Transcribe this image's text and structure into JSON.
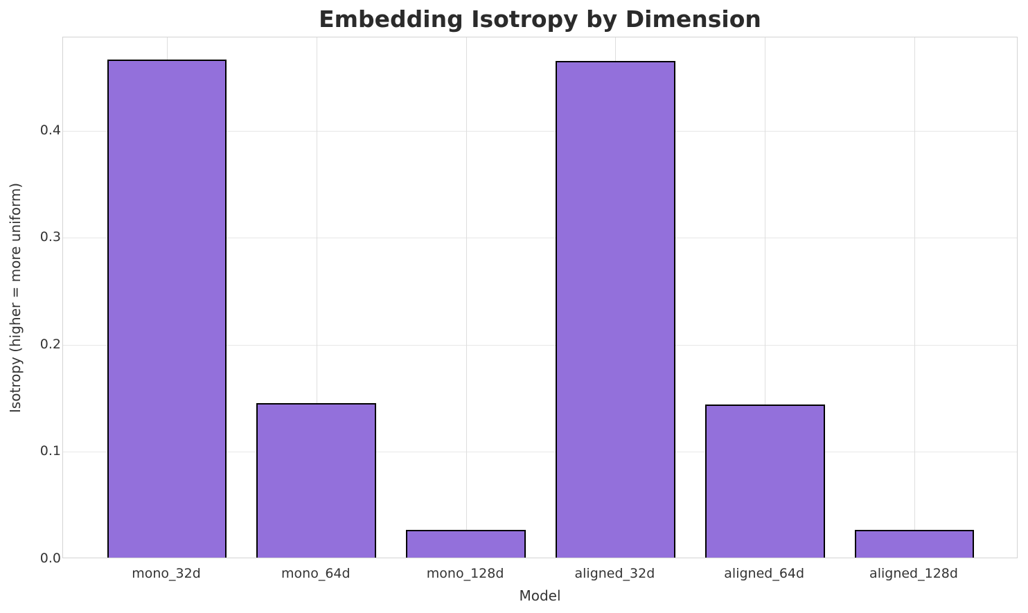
{
  "chart_data": {
    "type": "bar",
    "title": "Embedding Isotropy by Dimension",
    "xlabel": "Model",
    "ylabel": "Isotropy (higher = more uniform)",
    "categories": [
      "mono_32d",
      "mono_64d",
      "mono_128d",
      "aligned_32d",
      "aligned_64d",
      "aligned_128d"
    ],
    "values": [
      0.465,
      0.144,
      0.026,
      0.464,
      0.143,
      0.026
    ],
    "ylim": [
      0,
      0.487
    ],
    "yticks": [
      0.0,
      0.1,
      0.2,
      0.3,
      0.4
    ],
    "ytick_labels": [
      "0.0",
      "0.1",
      "0.2",
      "0.3",
      "0.4"
    ],
    "grid": true,
    "legend": "none",
    "bar_color": "#9370db",
    "bar_edge_color": "#000000",
    "grid_color": "#e7e7e7",
    "spine_color": "#d3d3d3",
    "text_color": "#333333",
    "title_color": "#2b2b2b",
    "background_color": "#ffffff"
  }
}
